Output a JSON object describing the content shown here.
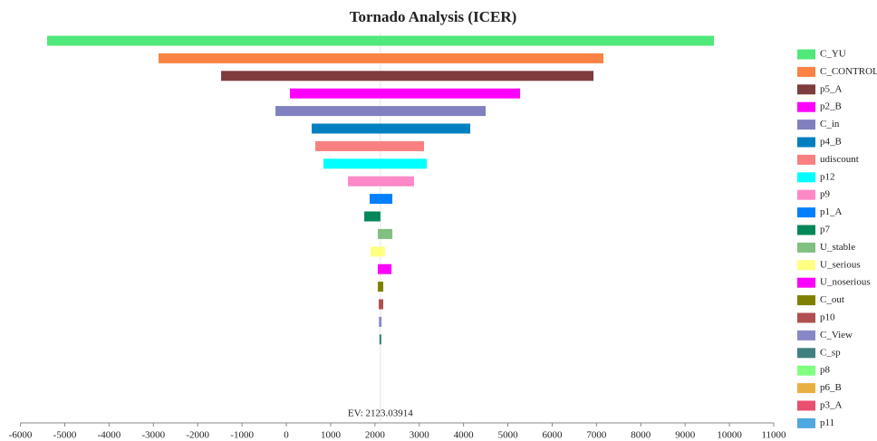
{
  "chart_data": {
    "type": "tornado",
    "title": "Tornado Analysis (ICER)",
    "categories": [
      "C_YU",
      "C_CONTROL",
      "p5_A",
      "p2_B",
      "C_in",
      "p4_B",
      "udiscount",
      "p12",
      "p9",
      "p1_A",
      "p7",
      "U_stable",
      "U_serious",
      "U_noserious",
      "C_out",
      "p10",
      "C_View",
      "C_sp",
      "p8",
      "p6_B",
      "p3_A",
      "p11"
    ],
    "low": [
      -5399,
      -2883,
      -1472,
      82,
      -245,
      573,
      654,
      838,
      1391,
      1881,
      1759,
      2065,
      1902,
      2065,
      2065,
      2086,
      2090,
      2100,
      2123,
      2123,
      2123,
      2123
    ],
    "high": [
      9652,
      7157,
      6933,
      5276,
      4499,
      4151,
      3108,
      3170,
      2883,
      2393,
      2123,
      2393,
      2229,
      2372,
      2188,
      2188,
      2150,
      2145,
      2123,
      2123,
      2123,
      2123
    ],
    "colors": [
      "#50e87a",
      "#f98244",
      "#7f3c3c",
      "#ff00ff",
      "#8080c0",
      "#0080c0",
      "#f88080",
      "#00ffff",
      "#ff88c8",
      "#0080ff",
      "#008858",
      "#80c080",
      "#ffff80",
      "#ff00ff",
      "#808000",
      "#b05050",
      "#8888c8",
      "#408080",
      "#80ff80",
      "#e8b040",
      "#e85070",
      "#50a8e0"
    ],
    "ev": 2123.03914,
    "ev_label": "EV: 2123.03914",
    "xlim": [
      -6000,
      11000
    ],
    "xticks": [
      -6000,
      -5000,
      -4000,
      -3000,
      -2000,
      -1000,
      0,
      1000,
      2000,
      3000,
      4000,
      5000,
      6000,
      7000,
      8000,
      9000,
      10000,
      11000
    ]
  }
}
